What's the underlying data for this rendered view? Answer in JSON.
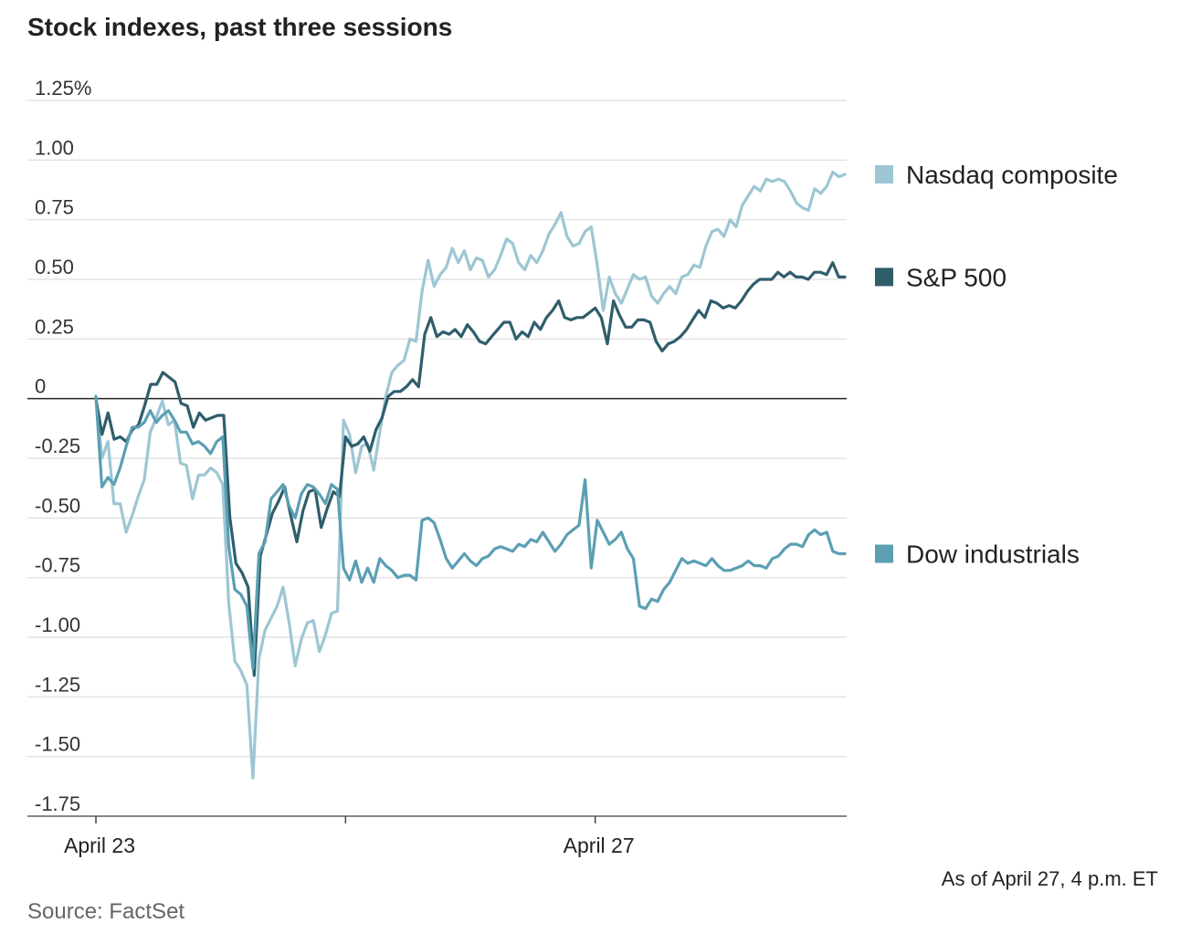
{
  "title": "Stock indexes, past three sessions",
  "note": "As of April 27, 4 p.m. ET",
  "source": "Source: FactSet",
  "chart_data": {
    "type": "line",
    "title": "Stock indexes, past three sessions",
    "ylim": [
      -1.75,
      1.25
    ],
    "yticks": [
      1.25,
      1.0,
      0.75,
      0.5,
      0.25,
      0,
      -0.25,
      -0.5,
      -0.75,
      -1.0,
      -1.25,
      -1.5,
      -1.75
    ],
    "ytick_labels": [
      "1.25%",
      "1.00",
      "0.75",
      "0.50",
      "0.25",
      "0",
      "-0.25",
      "-0.50",
      "-0.75",
      "-1.00",
      "-1.25",
      "-1.50",
      "-1.75"
    ],
    "xlim": [
      0,
      150
    ],
    "xticks": [
      0,
      50,
      100
    ],
    "xtick_labels": [
      {
        "x": 0,
        "label": "April 23"
      },
      {
        "x": 100,
        "label": "April 27"
      }
    ],
    "series": [
      {
        "name": "Nasdaq composite",
        "color": "#9dc6d3",
        "values": [
          0.01,
          -0.25,
          -0.18,
          -0.44,
          -0.44,
          -0.56,
          -0.49,
          -0.41,
          -0.34,
          -0.14,
          -0.08,
          -0.01,
          -0.11,
          -0.09,
          -0.27,
          -0.28,
          -0.42,
          -0.32,
          -0.32,
          -0.29,
          -0.31,
          -0.36,
          -0.86,
          -1.1,
          -1.14,
          -1.2,
          -1.59,
          -1.09,
          -0.97,
          -0.92,
          -0.87,
          -0.79,
          -0.94,
          -1.12,
          -1.01,
          -0.94,
          -0.93,
          -1.06,
          -0.99,
          -0.9,
          -0.89,
          -0.09,
          -0.15,
          -0.31,
          -0.2,
          -0.19,
          -0.3,
          -0.14,
          0.01,
          0.11,
          0.14,
          0.16,
          0.25,
          0.24,
          0.45,
          0.58,
          0.47,
          0.52,
          0.55,
          0.63,
          0.57,
          0.62,
          0.54,
          0.59,
          0.58,
          0.51,
          0.54,
          0.6,
          0.67,
          0.65,
          0.57,
          0.54,
          0.6,
          0.57,
          0.62,
          0.69,
          0.73,
          0.78,
          0.68,
          0.64,
          0.65,
          0.7,
          0.72,
          0.56,
          0.37,
          0.51,
          0.44,
          0.4,
          0.46,
          0.52,
          0.5,
          0.51,
          0.43,
          0.4,
          0.44,
          0.47,
          0.44,
          0.51,
          0.52,
          0.56,
          0.55,
          0.64,
          0.7,
          0.71,
          0.68,
          0.75,
          0.72,
          0.81,
          0.85,
          0.89,
          0.87,
          0.92,
          0.91,
          0.92,
          0.91,
          0.87,
          0.82,
          0.8,
          0.79,
          0.88,
          0.86,
          0.89,
          0.95,
          0.93,
          0.94
        ]
      },
      {
        "name": "S&P 500",
        "color": "#2f5e6b",
        "values": [
          0.0,
          -0.15,
          -0.06,
          -0.17,
          -0.16,
          -0.18,
          -0.13,
          -0.11,
          -0.03,
          0.06,
          0.06,
          0.11,
          0.09,
          0.07,
          -0.02,
          -0.03,
          -0.12,
          -0.06,
          -0.09,
          -0.08,
          -0.07,
          -0.07,
          -0.5,
          -0.69,
          -0.73,
          -0.79,
          -1.16,
          -0.66,
          -0.57,
          -0.48,
          -0.43,
          -0.37,
          -0.49,
          -0.6,
          -0.47,
          -0.39,
          -0.38,
          -0.54,
          -0.46,
          -0.39,
          -0.41,
          -0.16,
          -0.2,
          -0.19,
          -0.16,
          -0.22,
          -0.13,
          -0.08,
          0.01,
          0.03,
          0.03,
          0.05,
          0.08,
          0.05,
          0.27,
          0.34,
          0.26,
          0.28,
          0.27,
          0.29,
          0.26,
          0.31,
          0.28,
          0.24,
          0.23,
          0.26,
          0.29,
          0.32,
          0.32,
          0.25,
          0.28,
          0.26,
          0.32,
          0.29,
          0.34,
          0.37,
          0.41,
          0.34,
          0.33,
          0.34,
          0.34,
          0.36,
          0.38,
          0.34,
          0.23,
          0.41,
          0.35,
          0.3,
          0.3,
          0.33,
          0.33,
          0.32,
          0.24,
          0.2,
          0.23,
          0.24,
          0.26,
          0.29,
          0.33,
          0.37,
          0.34,
          0.41,
          0.4,
          0.38,
          0.39,
          0.38,
          0.41,
          0.45,
          0.48,
          0.5,
          0.5,
          0.5,
          0.53,
          0.51,
          0.53,
          0.51,
          0.51,
          0.5,
          0.53,
          0.53,
          0.52,
          0.57,
          0.51,
          0.51
        ]
      },
      {
        "name": "Dow industrials",
        "color": "#5b9fb3",
        "values": [
          0.01,
          -0.37,
          -0.33,
          -0.36,
          -0.29,
          -0.2,
          -0.12,
          -0.12,
          -0.1,
          -0.05,
          -0.1,
          -0.07,
          -0.05,
          -0.09,
          -0.14,
          -0.14,
          -0.19,
          -0.18,
          -0.2,
          -0.23,
          -0.18,
          -0.16,
          -0.62,
          -0.8,
          -0.82,
          -0.87,
          -1.13,
          -0.65,
          -0.6,
          -0.42,
          -0.39,
          -0.36,
          -0.45,
          -0.5,
          -0.4,
          -0.36,
          -0.37,
          -0.4,
          -0.44,
          -0.36,
          -0.38,
          -0.71,
          -0.76,
          -0.68,
          -0.77,
          -0.71,
          -0.77,
          -0.67,
          -0.7,
          -0.72,
          -0.75,
          -0.74,
          -0.74,
          -0.76,
          -0.51,
          -0.5,
          -0.52,
          -0.59,
          -0.67,
          -0.71,
          -0.68,
          -0.65,
          -0.68,
          -0.7,
          -0.67,
          -0.66,
          -0.63,
          -0.62,
          -0.63,
          -0.64,
          -0.61,
          -0.62,
          -0.59,
          -0.6,
          -0.56,
          -0.6,
          -0.64,
          -0.61,
          -0.57,
          -0.55,
          -0.53,
          -0.34,
          -0.71,
          -0.51,
          -0.56,
          -0.61,
          -0.59,
          -0.56,
          -0.63,
          -0.67,
          -0.87,
          -0.88,
          -0.84,
          -0.85,
          -0.8,
          -0.77,
          -0.72,
          -0.67,
          -0.69,
          -0.68,
          -0.69,
          -0.7,
          -0.67,
          -0.7,
          -0.72,
          -0.72,
          -0.71,
          -0.7,
          -0.68,
          -0.7,
          -0.7,
          -0.71,
          -0.67,
          -0.66,
          -0.63,
          -0.61,
          -0.61,
          -0.62,
          -0.57,
          -0.55,
          -0.57,
          -0.56,
          -0.64,
          -0.65,
          -0.65
        ]
      }
    ]
  }
}
